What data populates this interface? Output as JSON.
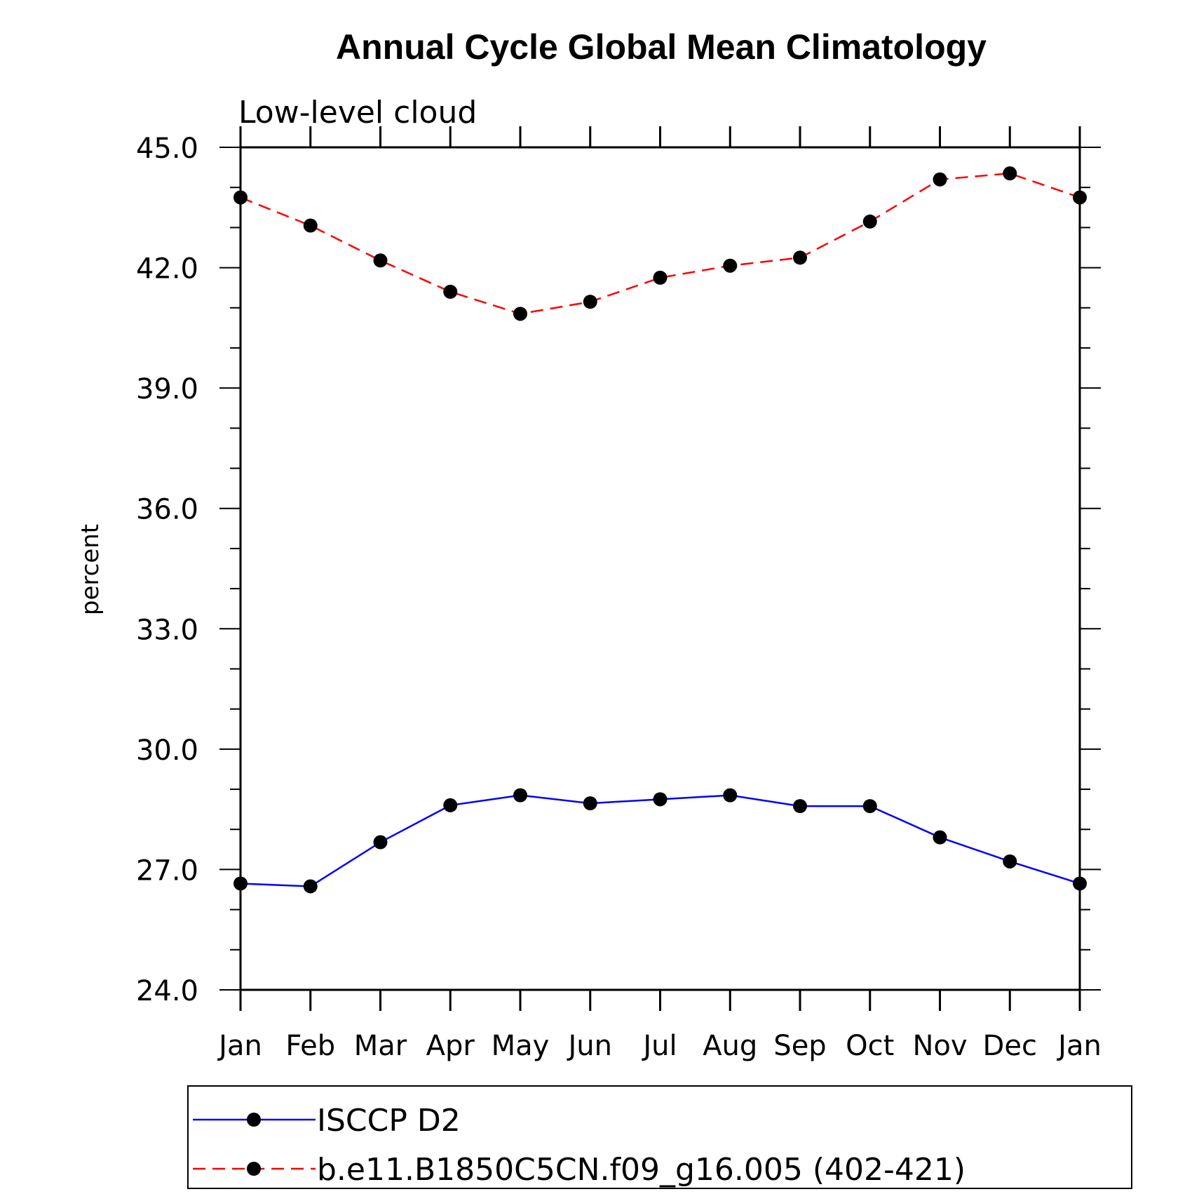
{
  "chart_data": {
    "type": "line",
    "title": "Annual Cycle Global Mean Climatology",
    "subtitle": "Low-level cloud",
    "ylabel": "percent",
    "xlabel": "",
    "categories": [
      "Jan",
      "Feb",
      "Mar",
      "Apr",
      "May",
      "Jun",
      "Jul",
      "Aug",
      "Sep",
      "Oct",
      "Nov",
      "Dec",
      "Jan"
    ],
    "ylim": [
      24.0,
      45.0
    ],
    "yticks": [
      "24.0",
      "27.0",
      "30.0",
      "33.0",
      "36.0",
      "39.0",
      "42.0",
      "45.0"
    ],
    "grid": false,
    "legend_position": "bottom",
    "series": [
      {
        "name": "ISCCP D2",
        "color": "#0000ff",
        "line_style": "solid",
        "marker": "filled-circle",
        "values": [
          26.65,
          26.58,
          27.68,
          28.6,
          28.85,
          28.65,
          28.75,
          28.85,
          28.58,
          28.58,
          27.8,
          27.2,
          26.65
        ]
      },
      {
        "name": "b.e11.B1850C5CN.f09_g16.005 (402-421)",
        "color": "#ff0000",
        "line_style": "dashed",
        "marker": "filled-circle",
        "values": [
          43.75,
          43.05,
          42.18,
          41.4,
          40.85,
          41.15,
          41.75,
          42.05,
          42.25,
          43.15,
          44.2,
          44.35,
          43.75
        ]
      }
    ]
  }
}
